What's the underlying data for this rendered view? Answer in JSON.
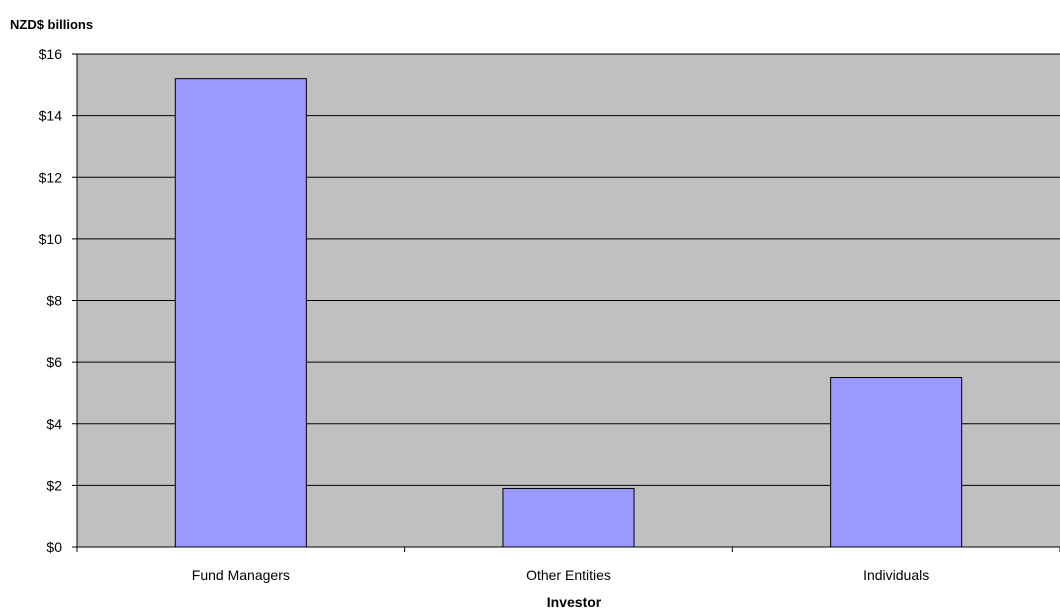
{
  "chart_data": {
    "type": "bar",
    "ylabel": "NZD$ billions",
    "xlabel": "Investor",
    "categories": [
      "Fund Managers",
      "Other Entities",
      "Individuals"
    ],
    "values": [
      15.2,
      1.9,
      5.5
    ],
    "ylim": [
      0,
      16
    ],
    "yticks": [
      0,
      2,
      4,
      6,
      8,
      10,
      12,
      14,
      16
    ],
    "ytick_labels": [
      "$0",
      "$2",
      "$4",
      "$6",
      "$8",
      "$10",
      "$12",
      "$14",
      "$16"
    ],
    "grid": true,
    "legend": "none",
    "colors": {
      "plot_background": "#c0c0c0",
      "bar_fill": "#9999ff",
      "bar_stroke": "#000000",
      "gridline": "#000000"
    }
  }
}
